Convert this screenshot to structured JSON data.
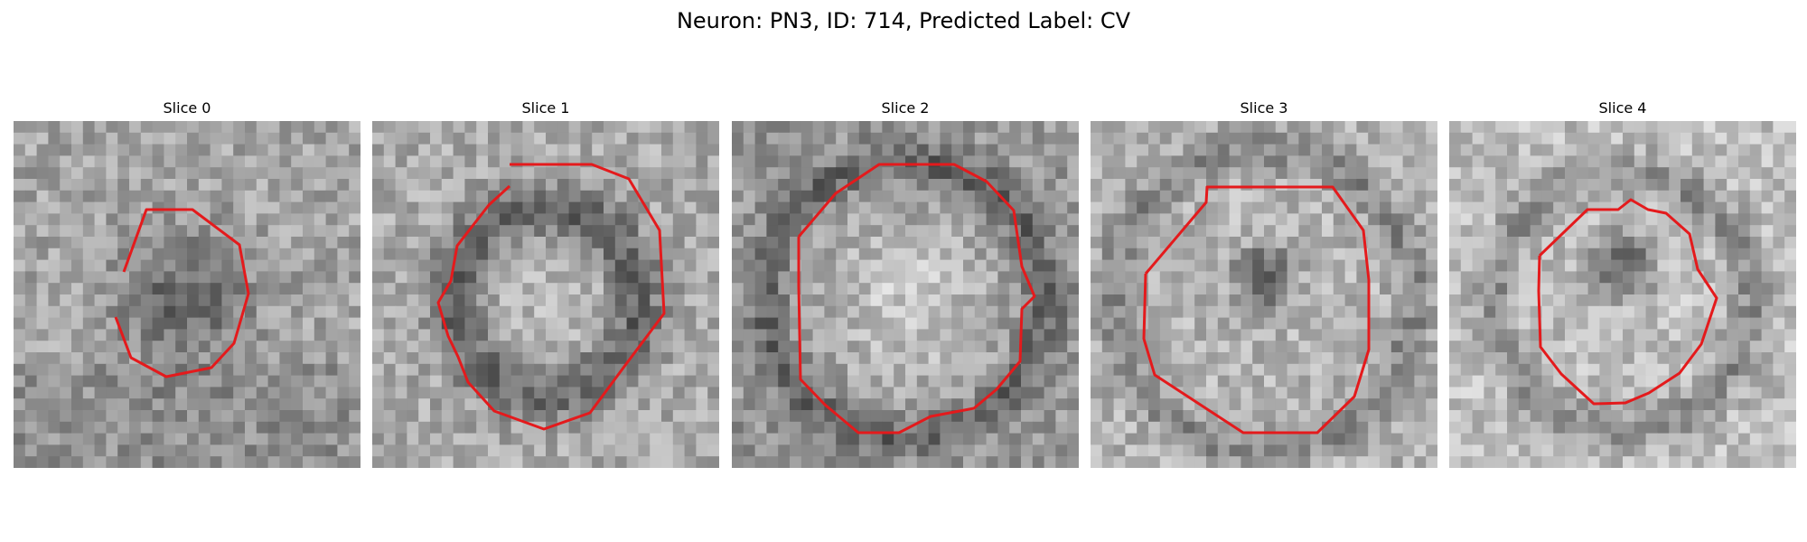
{
  "figure": {
    "title": "Neuron: PN3, ID: 714, Predicted Label: CV"
  },
  "slices": [
    {
      "label": "Slice 0",
      "pattern": "dark-blob",
      "seed": 11
    },
    {
      "label": "Slice 1",
      "pattern": "ring",
      "seed": 23
    },
    {
      "label": "Slice 2",
      "pattern": "bright-disk",
      "seed": 37
    },
    {
      "label": "Slice 3",
      "pattern": "ring-dark-center",
      "seed": 53
    },
    {
      "label": "Slice 4",
      "pattern": "ring-dark-center-small",
      "seed": 71
    }
  ],
  "colors": {
    "contour": "#e41a1c"
  }
}
